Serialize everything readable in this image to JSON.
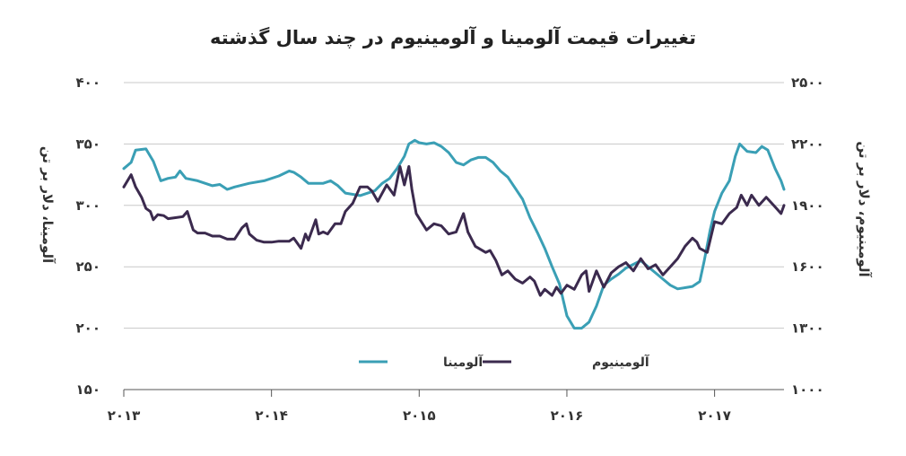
{
  "chart_data": {
    "type": "line",
    "title": "تغییرات قیمت آلومینا و آلومینیوم در چند سال گذشته",
    "ylabel_left": "آلومینا، دلار بر تن",
    "ylabel_right": "آلومینیوم، دلار بر تن",
    "ylim_left": [
      150,
      400
    ],
    "ylim_right": [
      1000,
      2500
    ],
    "yticks_left": [
      "۱۵۰",
      "۲۰۰",
      "۲۵۰",
      "۳۰۰",
      "۳۵۰",
      "۴۰۰"
    ],
    "yticks_right": [
      "۱۰۰۰",
      "۱۳۰۰",
      "۱۶۰۰",
      "۱۹۰۰",
      "۲۲۰۰",
      "۲۵۰۰"
    ],
    "xlim": [
      2013.0,
      2017.47
    ],
    "xticks": [
      {
        "value": 2013,
        "label": "۲۰۱۳"
      },
      {
        "value": 2014,
        "label": "۲۰۱۴"
      },
      {
        "value": 2015,
        "label": "۲۰۱۵"
      },
      {
        "value": 2016,
        "label": "۲۰۱۶"
      },
      {
        "value": 2017,
        "label": "۲۰۱۷"
      }
    ],
    "grid": "horizontal",
    "legend_position": "bottom-center",
    "series": [
      {
        "name": "آلومینا",
        "axis": "left",
        "color": "#3a9fb5",
        "points": [
          [
            2013.0,
            330
          ],
          [
            2013.05,
            335
          ],
          [
            2013.08,
            345
          ],
          [
            2013.15,
            346
          ],
          [
            2013.2,
            336
          ],
          [
            2013.25,
            320
          ],
          [
            2013.3,
            322
          ],
          [
            2013.35,
            323
          ],
          [
            2013.38,
            328
          ],
          [
            2013.42,
            322
          ],
          [
            2013.5,
            320
          ],
          [
            2013.55,
            318
          ],
          [
            2013.6,
            316
          ],
          [
            2013.65,
            317
          ],
          [
            2013.7,
            313
          ],
          [
            2013.75,
            315
          ],
          [
            2013.85,
            318
          ],
          [
            2013.95,
            320
          ],
          [
            2014.05,
            324
          ],
          [
            2014.12,
            328
          ],
          [
            2014.15,
            327
          ],
          [
            2014.2,
            323
          ],
          [
            2014.25,
            318
          ],
          [
            2014.35,
            318
          ],
          [
            2014.4,
            320
          ],
          [
            2014.45,
            316
          ],
          [
            2014.5,
            310
          ],
          [
            2014.55,
            309
          ],
          [
            2014.6,
            308
          ],
          [
            2014.7,
            312
          ],
          [
            2014.75,
            318
          ],
          [
            2014.8,
            322
          ],
          [
            2014.85,
            330
          ],
          [
            2014.9,
            340
          ],
          [
            2014.93,
            350
          ],
          [
            2014.97,
            353
          ],
          [
            2015.0,
            351
          ],
          [
            2015.05,
            350
          ],
          [
            2015.1,
            351
          ],
          [
            2015.15,
            348
          ],
          [
            2015.2,
            343
          ],
          [
            2015.25,
            335
          ],
          [
            2015.3,
            333
          ],
          [
            2015.35,
            337
          ],
          [
            2015.4,
            339
          ],
          [
            2015.45,
            339
          ],
          [
            2015.5,
            335
          ],
          [
            2015.55,
            328
          ],
          [
            2015.6,
            323
          ],
          [
            2015.65,
            314
          ],
          [
            2015.7,
            305
          ],
          [
            2015.75,
            290
          ],
          [
            2015.8,
            278
          ],
          [
            2015.85,
            265
          ],
          [
            2015.9,
            250
          ],
          [
            2015.95,
            236
          ],
          [
            2016.0,
            210
          ],
          [
            2016.05,
            200
          ],
          [
            2016.1,
            200
          ],
          [
            2016.15,
            205
          ],
          [
            2016.2,
            218
          ],
          [
            2016.25,
            235
          ],
          [
            2016.3,
            240
          ],
          [
            2016.35,
            244
          ],
          [
            2016.4,
            249
          ],
          [
            2016.45,
            252
          ],
          [
            2016.5,
            255
          ],
          [
            2016.55,
            250
          ],
          [
            2016.6,
            245
          ],
          [
            2016.65,
            240
          ],
          [
            2016.7,
            235
          ],
          [
            2016.75,
            232
          ],
          [
            2016.8,
            233
          ],
          [
            2016.85,
            234
          ],
          [
            2016.9,
            238
          ],
          [
            2016.93,
            255
          ],
          [
            2016.97,
            280
          ],
          [
            2017.0,
            295
          ],
          [
            2017.05,
            310
          ],
          [
            2017.1,
            320
          ],
          [
            2017.14,
            340
          ],
          [
            2017.17,
            350
          ],
          [
            2017.22,
            344
          ],
          [
            2017.28,
            343
          ],
          [
            2017.32,
            348
          ],
          [
            2017.36,
            345
          ],
          [
            2017.41,
            330
          ],
          [
            2017.45,
            320
          ],
          [
            2017.47,
            313
          ]
        ]
      },
      {
        "name": "آلومینیوم",
        "axis": "right",
        "color": "#3b2a4e",
        "points": [
          [
            2013.0,
            1990
          ],
          [
            2013.05,
            2050
          ],
          [
            2013.08,
            1990
          ],
          [
            2013.12,
            1940
          ],
          [
            2013.15,
            1885
          ],
          [
            2013.18,
            1870
          ],
          [
            2013.2,
            1830
          ],
          [
            2013.23,
            1855
          ],
          [
            2013.27,
            1850
          ],
          [
            2013.3,
            1835
          ],
          [
            2013.35,
            1840
          ],
          [
            2013.4,
            1845
          ],
          [
            2013.43,
            1870
          ],
          [
            2013.47,
            1780
          ],
          [
            2013.5,
            1765
          ],
          [
            2013.55,
            1765
          ],
          [
            2013.6,
            1750
          ],
          [
            2013.65,
            1750
          ],
          [
            2013.7,
            1735
          ],
          [
            2013.75,
            1735
          ],
          [
            2013.8,
            1790
          ],
          [
            2013.83,
            1810
          ],
          [
            2013.85,
            1760
          ],
          [
            2013.9,
            1730
          ],
          [
            2013.95,
            1720
          ],
          [
            2014.0,
            1720
          ],
          [
            2014.05,
            1725
          ],
          [
            2014.1,
            1725
          ],
          [
            2014.12,
            1725
          ],
          [
            2014.15,
            1740
          ],
          [
            2014.2,
            1690
          ],
          [
            2014.23,
            1760
          ],
          [
            2014.25,
            1730
          ],
          [
            2014.3,
            1830
          ],
          [
            2014.32,
            1760
          ],
          [
            2014.35,
            1770
          ],
          [
            2014.38,
            1760
          ],
          [
            2014.43,
            1810
          ],
          [
            2014.47,
            1810
          ],
          [
            2014.5,
            1870
          ],
          [
            2014.55,
            1910
          ],
          [
            2014.6,
            1990
          ],
          [
            2014.65,
            1990
          ],
          [
            2014.68,
            1970
          ],
          [
            2014.72,
            1920
          ],
          [
            2014.78,
            2000
          ],
          [
            2014.83,
            1950
          ],
          [
            2014.87,
            2090
          ],
          [
            2014.9,
            2000
          ],
          [
            2014.93,
            2090
          ],
          [
            2014.95,
            1980
          ],
          [
            2014.98,
            1860
          ],
          [
            2015.05,
            1780
          ],
          [
            2015.1,
            1810
          ],
          [
            2015.15,
            1800
          ],
          [
            2015.2,
            1760
          ],
          [
            2015.25,
            1770
          ],
          [
            2015.3,
            1860
          ],
          [
            2015.33,
            1770
          ],
          [
            2015.38,
            1700
          ],
          [
            2015.45,
            1670
          ],
          [
            2015.48,
            1680
          ],
          [
            2015.52,
            1630
          ],
          [
            2015.56,
            1560
          ],
          [
            2015.6,
            1580
          ],
          [
            2015.65,
            1540
          ],
          [
            2015.7,
            1520
          ],
          [
            2015.75,
            1550
          ],
          [
            2015.78,
            1530
          ],
          [
            2015.82,
            1460
          ],
          [
            2015.85,
            1490
          ],
          [
            2015.9,
            1460
          ],
          [
            2015.93,
            1500
          ],
          [
            2015.96,
            1470
          ],
          [
            2016.0,
            1510
          ],
          [
            2016.05,
            1490
          ],
          [
            2016.1,
            1560
          ],
          [
            2016.13,
            1580
          ],
          [
            2016.15,
            1480
          ],
          [
            2016.2,
            1580
          ],
          [
            2016.25,
            1500
          ],
          [
            2016.3,
            1570
          ],
          [
            2016.35,
            1600
          ],
          [
            2016.4,
            1620
          ],
          [
            2016.45,
            1580
          ],
          [
            2016.5,
            1640
          ],
          [
            2016.55,
            1590
          ],
          [
            2016.6,
            1610
          ],
          [
            2016.65,
            1560
          ],
          [
            2016.7,
            1600
          ],
          [
            2016.75,
            1640
          ],
          [
            2016.8,
            1700
          ],
          [
            2016.85,
            1740
          ],
          [
            2016.88,
            1720
          ],
          [
            2016.9,
            1690
          ],
          [
            2016.95,
            1670
          ],
          [
            2017.0,
            1820
          ],
          [
            2017.05,
            1810
          ],
          [
            2017.1,
            1860
          ],
          [
            2017.15,
            1890
          ],
          [
            2017.18,
            1950
          ],
          [
            2017.22,
            1900
          ],
          [
            2017.25,
            1950
          ],
          [
            2017.3,
            1900
          ],
          [
            2017.35,
            1940
          ],
          [
            2017.4,
            1900
          ],
          [
            2017.45,
            1860
          ],
          [
            2017.47,
            1900
          ]
        ]
      }
    ]
  }
}
